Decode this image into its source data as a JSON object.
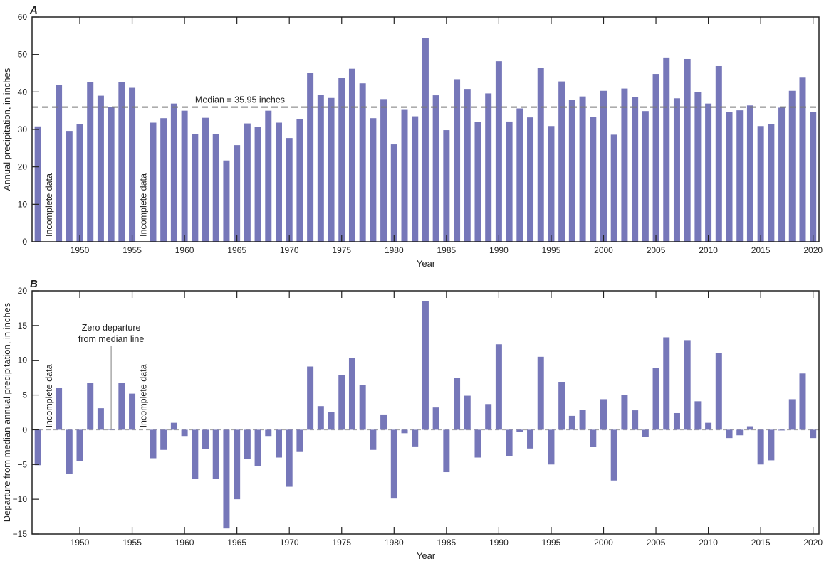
{
  "colors": {
    "bar": "#7677b9",
    "median_line": "#7a7a7a",
    "axis": "#222222",
    "leader": "#aaaaaa"
  },
  "chart_data": [
    {
      "panel": "A",
      "type": "bar",
      "xlabel": "Year",
      "ylabel": "Annual precipitation, in inches",
      "ylim": [
        0,
        60
      ],
      "yticks": [
        0,
        10,
        20,
        30,
        40,
        50,
        60
      ],
      "xticks": [
        1950,
        1955,
        1960,
        1965,
        1970,
        1975,
        1980,
        1985,
        1990,
        1995,
        2000,
        2005,
        2010,
        2015,
        2020
      ],
      "xlim": [
        1946,
        2020
      ],
      "grid": false,
      "median": 35.95,
      "median_label": "Median = 35.95 inches",
      "annotations": [
        {
          "year": 1947,
          "text": "Incomplete data"
        },
        {
          "year": 1956,
          "text": "Incomplete data"
        }
      ],
      "x": [
        1946,
        1947,
        1948,
        1949,
        1950,
        1951,
        1952,
        1953,
        1954,
        1955,
        1956,
        1957,
        1958,
        1959,
        1960,
        1961,
        1962,
        1963,
        1964,
        1965,
        1966,
        1967,
        1968,
        1969,
        1970,
        1971,
        1972,
        1973,
        1974,
        1975,
        1976,
        1977,
        1978,
        1979,
        1980,
        1981,
        1982,
        1983,
        1984,
        1985,
        1986,
        1987,
        1988,
        1989,
        1990,
        1991,
        1992,
        1993,
        1994,
        1995,
        1996,
        1997,
        1998,
        1999,
        2000,
        2001,
        2002,
        2003,
        2004,
        2005,
        2006,
        2007,
        2008,
        2009,
        2010,
        2011,
        2012,
        2013,
        2014,
        2015,
        2016,
        2017,
        2018,
        2019,
        2020
      ],
      "values": [
        30.8,
        null,
        41.9,
        29.6,
        31.4,
        42.6,
        39.0,
        35.9,
        42.6,
        41.1,
        null,
        31.8,
        33.0,
        36.9,
        35.0,
        28.8,
        33.1,
        28.8,
        21.7,
        25.8,
        31.6,
        30.6,
        35.0,
        31.8,
        27.7,
        32.8,
        45.0,
        39.3,
        38.4,
        43.8,
        46.2,
        42.3,
        33.0,
        38.1,
        26.0,
        35.4,
        33.5,
        54.4,
        39.1,
        29.8,
        43.4,
        40.8,
        31.9,
        39.6,
        48.2,
        32.1,
        35.6,
        33.2,
        46.4,
        30.9,
        42.8,
        37.9,
        38.8,
        33.4,
        40.3,
        28.6,
        40.9,
        38.7,
        34.9,
        44.8,
        49.2,
        38.3,
        48.8,
        40.0,
        36.9,
        46.9,
        34.7,
        35.1,
        36.4,
        30.9,
        31.5,
        35.8,
        40.3,
        44.0,
        34.7
      ]
    },
    {
      "panel": "B",
      "type": "bar",
      "xlabel": "Year",
      "ylabel": "Departure from median annual precipitation, in inches",
      "ylim": [
        -15,
        20
      ],
      "yticks": [
        -15,
        -10,
        -5,
        0,
        5,
        10,
        15,
        20
      ],
      "xticks": [
        1950,
        1955,
        1960,
        1965,
        1970,
        1975,
        1980,
        1985,
        1990,
        1995,
        2000,
        2005,
        2010,
        2015,
        2020
      ],
      "xlim": [
        1946,
        2020
      ],
      "grid": false,
      "zero_line_label": [
        "Zero departure",
        "from median line"
      ],
      "annotations": [
        {
          "year": 1947,
          "text": "Incomplete data"
        },
        {
          "year": 1956,
          "text": "Incomplete data"
        }
      ],
      "x": [
        1946,
        1947,
        1948,
        1949,
        1950,
        1951,
        1952,
        1953,
        1954,
        1955,
        1956,
        1957,
        1958,
        1959,
        1960,
        1961,
        1962,
        1963,
        1964,
        1965,
        1966,
        1967,
        1968,
        1969,
        1970,
        1971,
        1972,
        1973,
        1974,
        1975,
        1976,
        1977,
        1978,
        1979,
        1980,
        1981,
        1982,
        1983,
        1984,
        1985,
        1986,
        1987,
        1988,
        1989,
        1990,
        1991,
        1992,
        1993,
        1994,
        1995,
        1996,
        1997,
        1998,
        1999,
        2000,
        2001,
        2002,
        2003,
        2004,
        2005,
        2006,
        2007,
        2008,
        2009,
        2010,
        2011,
        2012,
        2013,
        2014,
        2015,
        2016,
        2017,
        2018,
        2019,
        2020
      ],
      "values": [
        -5.1,
        null,
        6.0,
        -6.3,
        -4.5,
        6.7,
        3.1,
        0.0,
        6.7,
        5.2,
        null,
        -4.1,
        -2.9,
        1.0,
        -0.9,
        -7.1,
        -2.8,
        -7.1,
        -14.2,
        -10.0,
        -4.2,
        -5.2,
        -0.9,
        -4.0,
        -8.2,
        -3.1,
        9.1,
        3.4,
        2.5,
        7.9,
        10.3,
        6.4,
        -2.9,
        2.2,
        -9.9,
        -0.5,
        -2.4,
        18.5,
        3.2,
        -6.1,
        7.5,
        4.9,
        -4.0,
        3.7,
        12.3,
        -3.8,
        -0.3,
        -2.7,
        10.5,
        -5.0,
        6.9,
        2.0,
        2.9,
        -2.5,
        4.4,
        -7.3,
        5.0,
        2.8,
        -1.0,
        8.9,
        13.3,
        2.4,
        12.9,
        4.1,
        1.0,
        11.0,
        -1.2,
        -0.8,
        0.5,
        -5.0,
        -4.4,
        -0.1,
        4.4,
        8.1,
        -1.2
      ]
    }
  ]
}
